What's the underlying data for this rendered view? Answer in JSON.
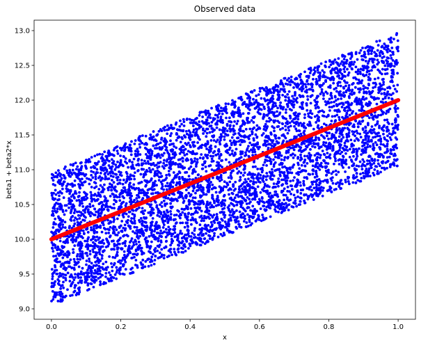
{
  "chart_data": {
    "type": "scatter",
    "title": "Observed data",
    "xlabel": "x",
    "ylabel": "beta1 + beta2*x",
    "xlim": [
      -0.05,
      1.05
    ],
    "ylim": [
      8.85,
      13.15
    ],
    "x_ticks": [
      0.0,
      0.2,
      0.4,
      0.6,
      0.8,
      1.0
    ],
    "x_tick_labels": [
      "0.0",
      "0.2",
      "0.4",
      "0.6",
      "0.8",
      "1.0"
    ],
    "y_ticks": [
      9.0,
      9.5,
      10.0,
      10.5,
      11.0,
      11.5,
      12.0,
      12.5,
      13.0
    ],
    "y_tick_labels": [
      "9.0",
      "9.5",
      "10.0",
      "10.5",
      "11.0",
      "11.5",
      "12.0",
      "12.5",
      "13.0"
    ],
    "grid": false,
    "series": [
      {
        "type": "scatter",
        "color": "#0000ff",
        "distribution": {
          "x_range": [
            0.0,
            1.0
          ],
          "y_lower": {
            "intercept": 9.05,
            "slope": 2.0
          },
          "y_upper": {
            "intercept": 10.97,
            "slope": 2.0
          }
        }
      },
      {
        "type": "line",
        "color": "#ff0000",
        "x": [
          0.0,
          1.0
        ],
        "y": [
          10.0,
          12.0
        ]
      }
    ]
  }
}
